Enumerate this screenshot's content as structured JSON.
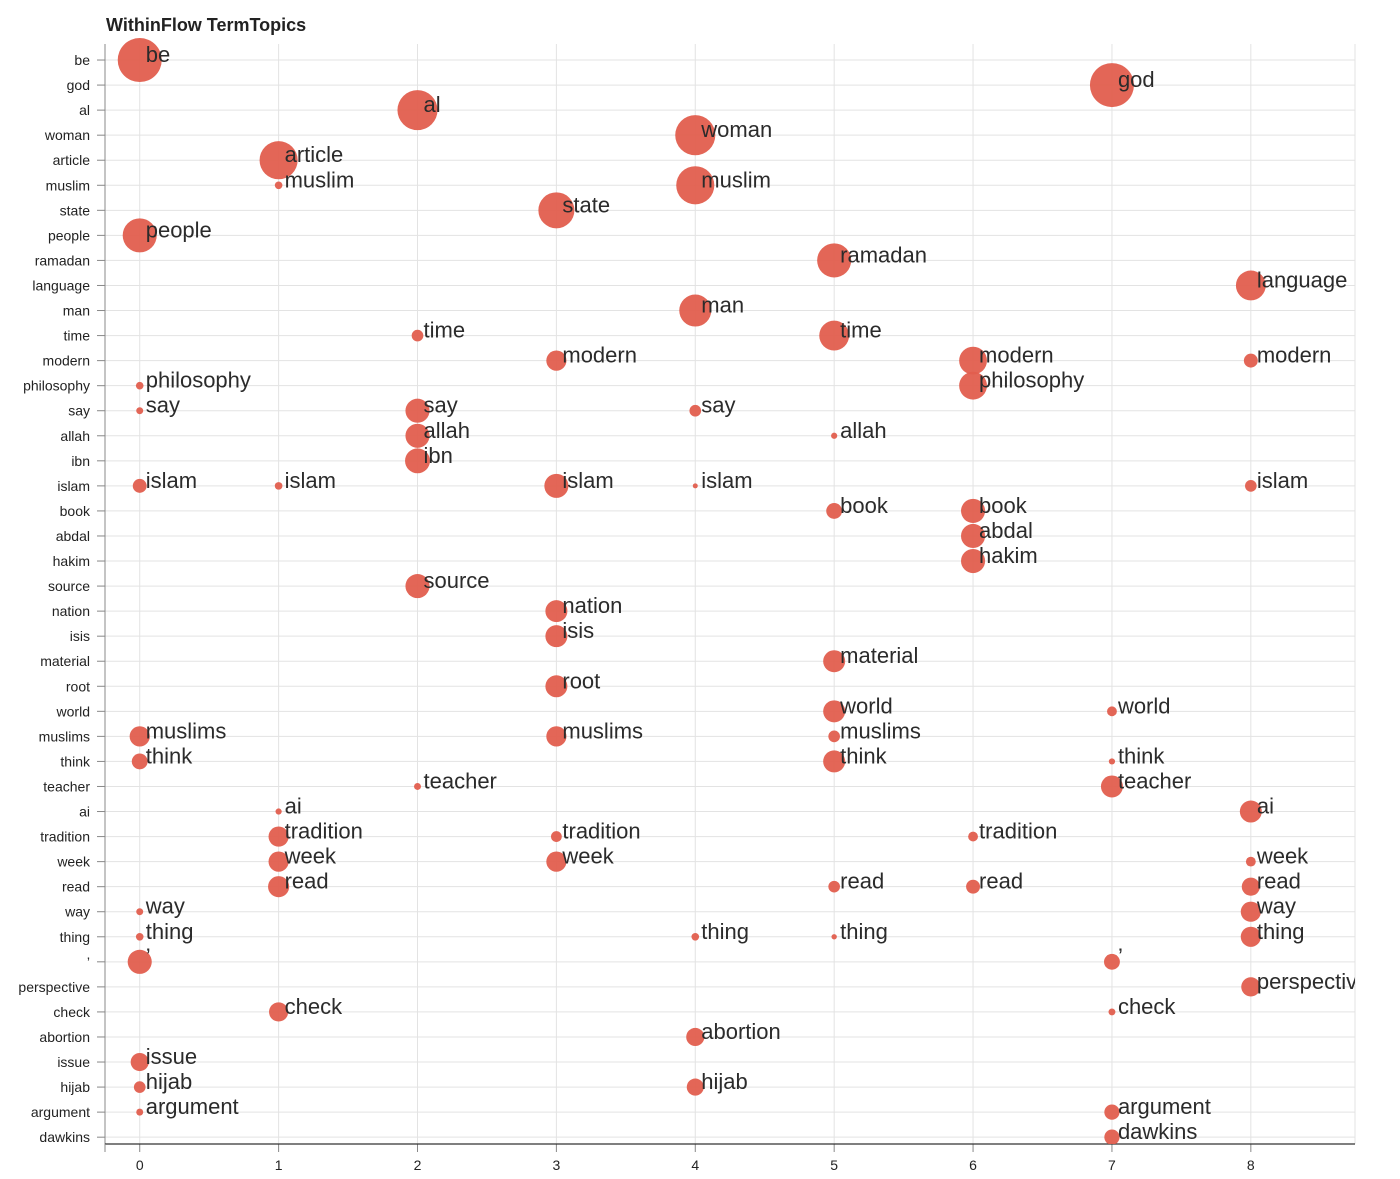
{
  "colors": {
    "bubble": "#e15e4e",
    "grid": "#e3e3e3"
  },
  "chart_data": {
    "type": "scatter",
    "title": "WithinFlow TermTopics",
    "xlabel": "",
    "ylabel": "",
    "grid": true,
    "xlim": [
      -0.25,
      8.75
    ],
    "x_ticks": [
      0,
      1,
      2,
      3,
      4,
      5,
      6,
      7,
      8
    ],
    "y_categories": [
      "be",
      "god",
      "al",
      "woman",
      "article",
      "muslim",
      "state",
      "people",
      "ramadan",
      "language",
      "man",
      "time",
      "modern",
      "philosophy",
      "say",
      "allah",
      "ibn",
      "islam",
      "book",
      "abdal",
      "hakim",
      "source",
      "nation",
      "isis",
      "material",
      "root",
      "world",
      "muslims",
      "think",
      "teacher",
      "ai",
      "tradition",
      "week",
      "read",
      "way",
      "thing",
      "’",
      "perspective",
      "check",
      "abortion",
      "issue",
      "hijab",
      "argument",
      "dawkins"
    ],
    "points": [
      {
        "x": 0,
        "y": "be",
        "size": 100
      },
      {
        "x": 0,
        "y": "people",
        "size": 60
      },
      {
        "x": 0,
        "y": "philosophy",
        "size": 3
      },
      {
        "x": 0,
        "y": "say",
        "size": 2.5
      },
      {
        "x": 0,
        "y": "islam",
        "size": 10
      },
      {
        "x": 0,
        "y": "muslims",
        "size": 21
      },
      {
        "x": 0,
        "y": "think",
        "size": 13
      },
      {
        "x": 0,
        "y": "way",
        "size": 2.5
      },
      {
        "x": 0,
        "y": "thing",
        "size": 3
      },
      {
        "x": 0,
        "y": "’",
        "size": 30
      },
      {
        "x": 0,
        "y": "issue",
        "size": 17
      },
      {
        "x": 0,
        "y": "hijab",
        "size": 7
      },
      {
        "x": 0,
        "y": "argument",
        "size": 2.5
      },
      {
        "x": 1,
        "y": "article",
        "size": 75
      },
      {
        "x": 1,
        "y": "muslim",
        "size": 3
      },
      {
        "x": 1,
        "y": "islam",
        "size": 3
      },
      {
        "x": 1,
        "y": "ai",
        "size": 2
      },
      {
        "x": 1,
        "y": "tradition",
        "size": 21
      },
      {
        "x": 1,
        "y": "week",
        "size": 21
      },
      {
        "x": 1,
        "y": "read",
        "size": 23
      },
      {
        "x": 1,
        "y": "check",
        "size": 19
      },
      {
        "x": 2,
        "y": "al",
        "size": 83
      },
      {
        "x": 2,
        "y": "time",
        "size": 7
      },
      {
        "x": 2,
        "y": "say",
        "size": 30
      },
      {
        "x": 2,
        "y": "allah",
        "size": 30
      },
      {
        "x": 2,
        "y": "ibn",
        "size": 32
      },
      {
        "x": 2,
        "y": "source",
        "size": 30
      },
      {
        "x": 2,
        "y": "teacher",
        "size": 2.5
      },
      {
        "x": 3,
        "y": "state",
        "size": 67
      },
      {
        "x": 3,
        "y": "modern",
        "size": 21
      },
      {
        "x": 3,
        "y": "islam",
        "size": 30
      },
      {
        "x": 3,
        "y": "nation",
        "size": 25
      },
      {
        "x": 3,
        "y": "isis",
        "size": 25
      },
      {
        "x": 3,
        "y": "root",
        "size": 25
      },
      {
        "x": 3,
        "y": "muslims",
        "size": 21
      },
      {
        "x": 3,
        "y": "tradition",
        "size": 6
      },
      {
        "x": 3,
        "y": "week",
        "size": 21
      },
      {
        "x": 4,
        "y": "woman",
        "size": 83
      },
      {
        "x": 4,
        "y": "muslim",
        "size": 75
      },
      {
        "x": 4,
        "y": "man",
        "size": 53
      },
      {
        "x": 4,
        "y": "say",
        "size": 7
      },
      {
        "x": 4,
        "y": "islam",
        "size": 1.3
      },
      {
        "x": 4,
        "y": "thing",
        "size": 3
      },
      {
        "x": 4,
        "y": "abortion",
        "size": 17
      },
      {
        "x": 4,
        "y": "hijab",
        "size": 15
      },
      {
        "x": 5,
        "y": "ramadan",
        "size": 60
      },
      {
        "x": 5,
        "y": "time",
        "size": 46
      },
      {
        "x": 5,
        "y": "allah",
        "size": 2
      },
      {
        "x": 5,
        "y": "book",
        "size": 13
      },
      {
        "x": 5,
        "y": "material",
        "size": 25
      },
      {
        "x": 5,
        "y": "world",
        "size": 25
      },
      {
        "x": 5,
        "y": "muslims",
        "size": 7
      },
      {
        "x": 5,
        "y": "think",
        "size": 25
      },
      {
        "x": 5,
        "y": "read",
        "size": 7
      },
      {
        "x": 5,
        "y": "thing",
        "size": 1.5
      },
      {
        "x": 6,
        "y": "modern",
        "size": 40
      },
      {
        "x": 6,
        "y": "philosophy",
        "size": 40
      },
      {
        "x": 6,
        "y": "book",
        "size": 30
      },
      {
        "x": 6,
        "y": "abdal",
        "size": 30
      },
      {
        "x": 6,
        "y": "hakim",
        "size": 30
      },
      {
        "x": 6,
        "y": "tradition",
        "size": 5
      },
      {
        "x": 6,
        "y": "read",
        "size": 10
      },
      {
        "x": 7,
        "y": "god",
        "size": 100
      },
      {
        "x": 7,
        "y": "world",
        "size": 5
      },
      {
        "x": 7,
        "y": "think",
        "size": 2
      },
      {
        "x": 7,
        "y": "teacher",
        "size": 25
      },
      {
        "x": 7,
        "y": "’",
        "size": 13
      },
      {
        "x": 7,
        "y": "check",
        "size": 2.5
      },
      {
        "x": 7,
        "y": "argument",
        "size": 12
      },
      {
        "x": 7,
        "y": "dawkins",
        "size": 12
      },
      {
        "x": 8,
        "y": "language",
        "size": 46
      },
      {
        "x": 8,
        "y": "modern",
        "size": 10
      },
      {
        "x": 8,
        "y": "islam",
        "size": 7
      },
      {
        "x": 8,
        "y": "ai",
        "size": 25
      },
      {
        "x": 8,
        "y": "week",
        "size": 5
      },
      {
        "x": 8,
        "y": "read",
        "size": 17
      },
      {
        "x": 8,
        "y": "way",
        "size": 21
      },
      {
        "x": 8,
        "y": "thing",
        "size": 21
      },
      {
        "x": 8,
        "y": "perspective",
        "size": 19
      }
    ]
  }
}
